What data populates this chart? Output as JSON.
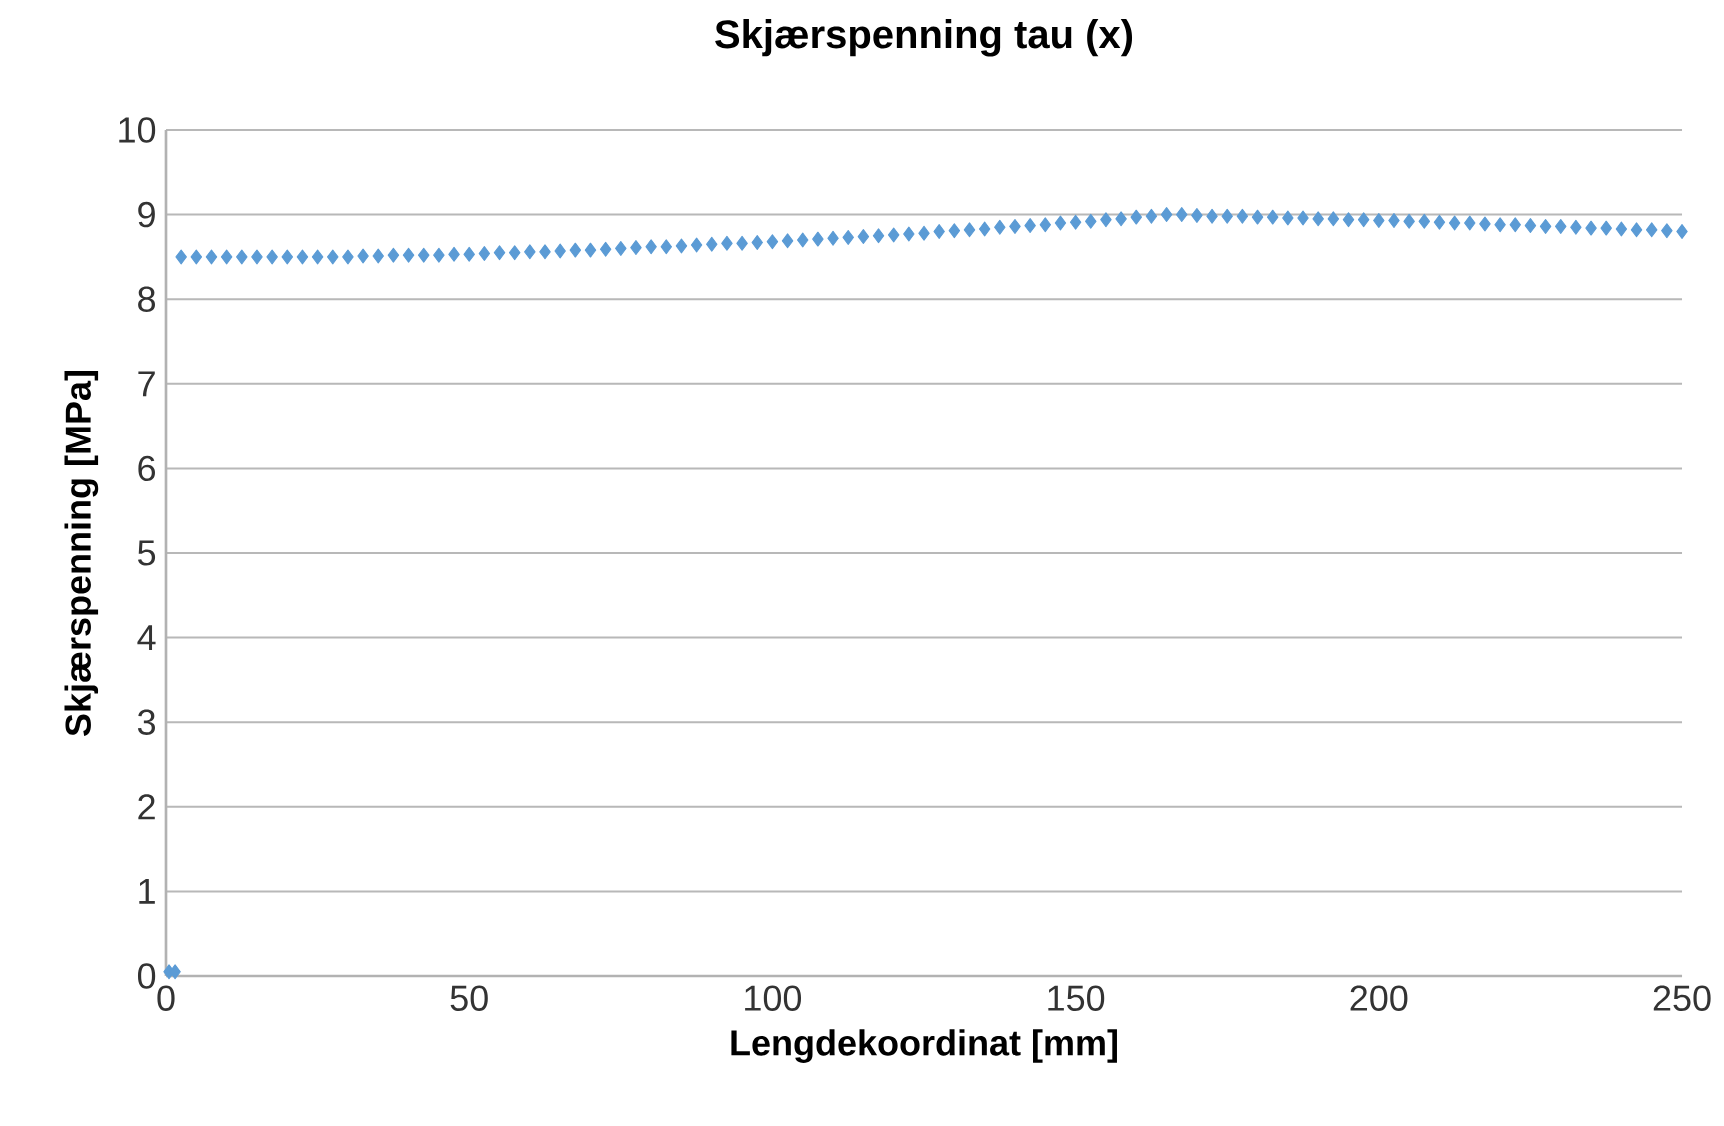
{
  "chart_data": {
    "type": "scatter",
    "title": "Skjærspenning tau (x)",
    "xlabel": "Lengdekoordinat [mm]",
    "ylabel": "Skjærspenning [MPa]",
    "xlim": [
      0,
      250
    ],
    "xticks": [
      0,
      50,
      100,
      150,
      200,
      250
    ],
    "ylim": [
      0,
      10
    ],
    "yticks": [
      0,
      1,
      2,
      3,
      4,
      5,
      6,
      7,
      8,
      9,
      10
    ],
    "grid": "y",
    "marker": "diamond",
    "series": [
      {
        "color": "#5b9bd5",
        "x": [
          0.5,
          1.5,
          2.5,
          5,
          7.5,
          10,
          12.5,
          15,
          17.5,
          20,
          22.5,
          25,
          27.5,
          30,
          32.5,
          35,
          37.5,
          40,
          42.5,
          45,
          47.5,
          50,
          52.5,
          55,
          57.5,
          60,
          62.5,
          65,
          67.5,
          70,
          72.5,
          75,
          77.5,
          80,
          82.5,
          85,
          87.5,
          90,
          92.5,
          95,
          97.5,
          100,
          102.5,
          105,
          107.5,
          110,
          112.5,
          115,
          117.5,
          120,
          122.5,
          125,
          127.5,
          130,
          132.5,
          135,
          137.5,
          140,
          142.5,
          145,
          147.5,
          150,
          152.5,
          155,
          157.5,
          160,
          162.5,
          165,
          167.5,
          170,
          172.5,
          175,
          177.5,
          180,
          182.5,
          185,
          187.5,
          190,
          192.5,
          195,
          197.5,
          200,
          202.5,
          205,
          207.5,
          210,
          212.5,
          215,
          217.5,
          220,
          222.5,
          225,
          227.5,
          230,
          232.5,
          235,
          237.5,
          240,
          242.5,
          245,
          247.5,
          250
        ],
        "values": [
          0.05,
          0.05,
          8.5,
          8.5,
          8.5,
          8.5,
          8.5,
          8.5,
          8.5,
          8.5,
          8.5,
          8.5,
          8.5,
          8.5,
          8.51,
          8.51,
          8.52,
          8.52,
          8.52,
          8.52,
          8.53,
          8.53,
          8.54,
          8.55,
          8.55,
          8.56,
          8.56,
          8.57,
          8.58,
          8.58,
          8.59,
          8.6,
          8.61,
          8.62,
          8.62,
          8.63,
          8.64,
          8.65,
          8.66,
          8.66,
          8.67,
          8.68,
          8.69,
          8.7,
          8.71,
          8.72,
          8.73,
          8.74,
          8.75,
          8.76,
          8.77,
          8.78,
          8.8,
          8.81,
          8.82,
          8.83,
          8.85,
          8.86,
          8.87,
          8.88,
          8.9,
          8.91,
          8.92,
          8.94,
          8.95,
          8.97,
          8.98,
          9.0,
          9.0,
          8.99,
          8.98,
          8.98,
          8.98,
          8.97,
          8.97,
          8.96,
          8.96,
          8.95,
          8.95,
          8.94,
          8.94,
          8.93,
          8.93,
          8.92,
          8.92,
          8.91,
          8.9,
          8.9,
          8.89,
          8.88,
          8.88,
          8.87,
          8.86,
          8.86,
          8.85,
          8.84,
          8.84,
          8.83,
          8.82,
          8.82,
          8.81,
          8.8
        ]
      }
    ]
  }
}
